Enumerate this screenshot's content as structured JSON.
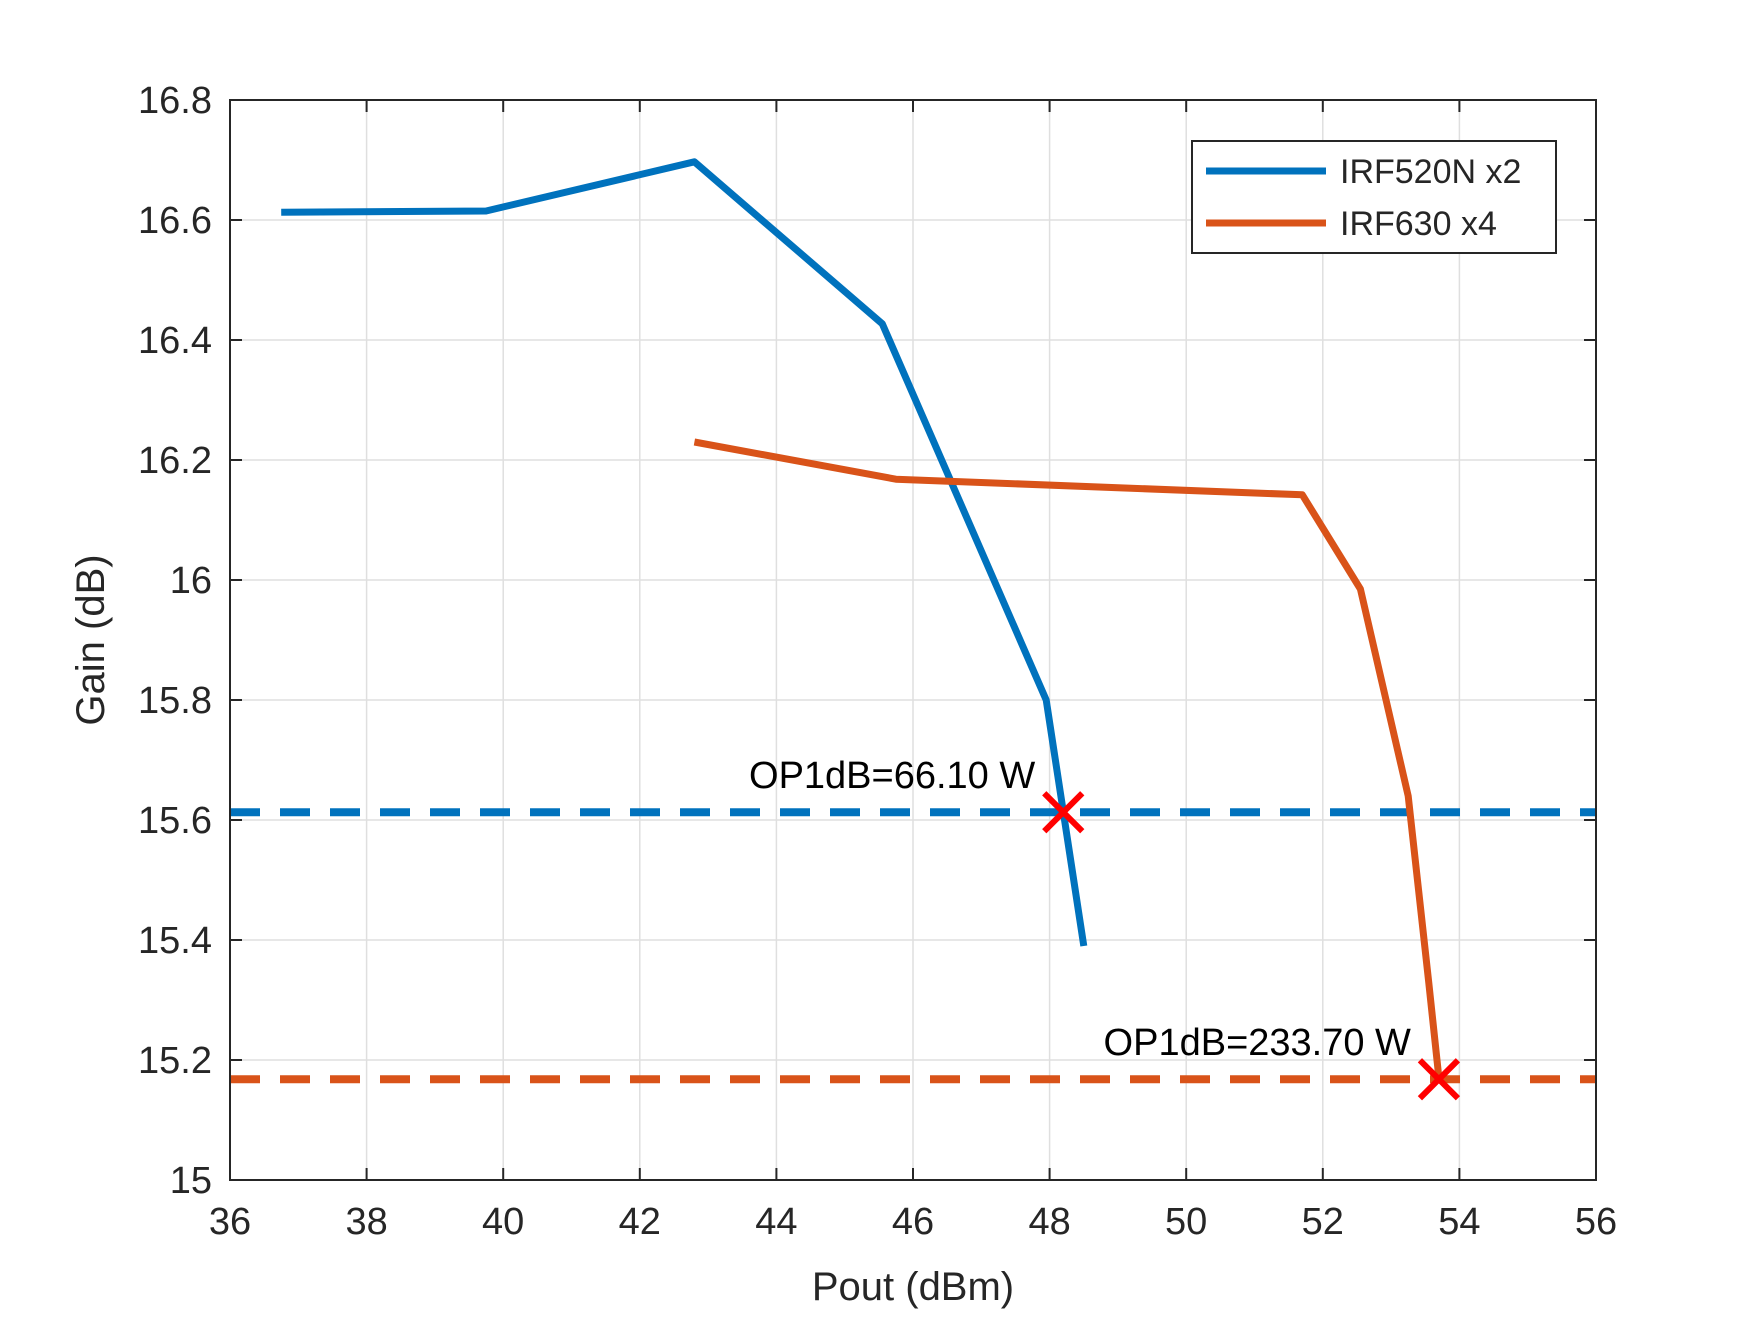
{
  "chart_data": {
    "type": "line",
    "xlabel": "Pout (dBm)",
    "ylabel": "Gain (dB)",
    "xlim": [
      36,
      56
    ],
    "ylim": [
      15,
      16.8
    ],
    "xticks": [
      36,
      38,
      40,
      42,
      44,
      46,
      48,
      50,
      52,
      54,
      56
    ],
    "yticks": [
      15,
      15.2,
      15.4,
      15.6,
      15.8,
      16,
      16.2,
      16.4,
      16.6,
      16.8
    ],
    "xtick_labels": [
      "36",
      "38",
      "40",
      "42",
      "44",
      "46",
      "48",
      "50",
      "52",
      "54",
      "56"
    ],
    "ytick_labels": [
      "15",
      "15.2",
      "15.4",
      "15.6",
      "15.8",
      "16",
      "16.2",
      "16.4",
      "16.6",
      "16.8"
    ],
    "grid": true,
    "legend_position": "top-right",
    "series": [
      {
        "name": "IRF520N x2",
        "color": "#0072BD",
        "style": "solid",
        "x": [
          36.75,
          39.75,
          42.8,
          45.55,
          47.95,
          48.5
        ],
        "y": [
          16.613,
          16.615,
          16.697,
          16.427,
          15.8,
          15.39
        ]
      },
      {
        "name": "IRF630 x4",
        "color": "#D95319",
        "style": "solid",
        "x": [
          42.8,
          45.75,
          51.7,
          52.55,
          53.25,
          53.55,
          53.7
        ],
        "y": [
          16.23,
          16.168,
          16.142,
          15.985,
          15.64,
          15.33,
          15.17
        ]
      }
    ],
    "reference_lines": [
      {
        "y": 15.613,
        "color": "#0072BD",
        "style": "dashed"
      },
      {
        "y": 15.168,
        "color": "#D95319",
        "style": "dashed"
      }
    ],
    "markers": [
      {
        "x": 48.2,
        "y": 15.613,
        "color": "#FF0000",
        "symbol": "x"
      },
      {
        "x": 53.7,
        "y": 15.168,
        "color": "#FF0000",
        "symbol": "x"
      }
    ],
    "annotations": [
      {
        "text": "OP1dB=66.10 W",
        "x": 48.2,
        "y": 15.613,
        "align": "end"
      },
      {
        "text": "OP1dB=233.70 W",
        "x": 53.7,
        "y": 15.168,
        "align": "end"
      }
    ]
  }
}
